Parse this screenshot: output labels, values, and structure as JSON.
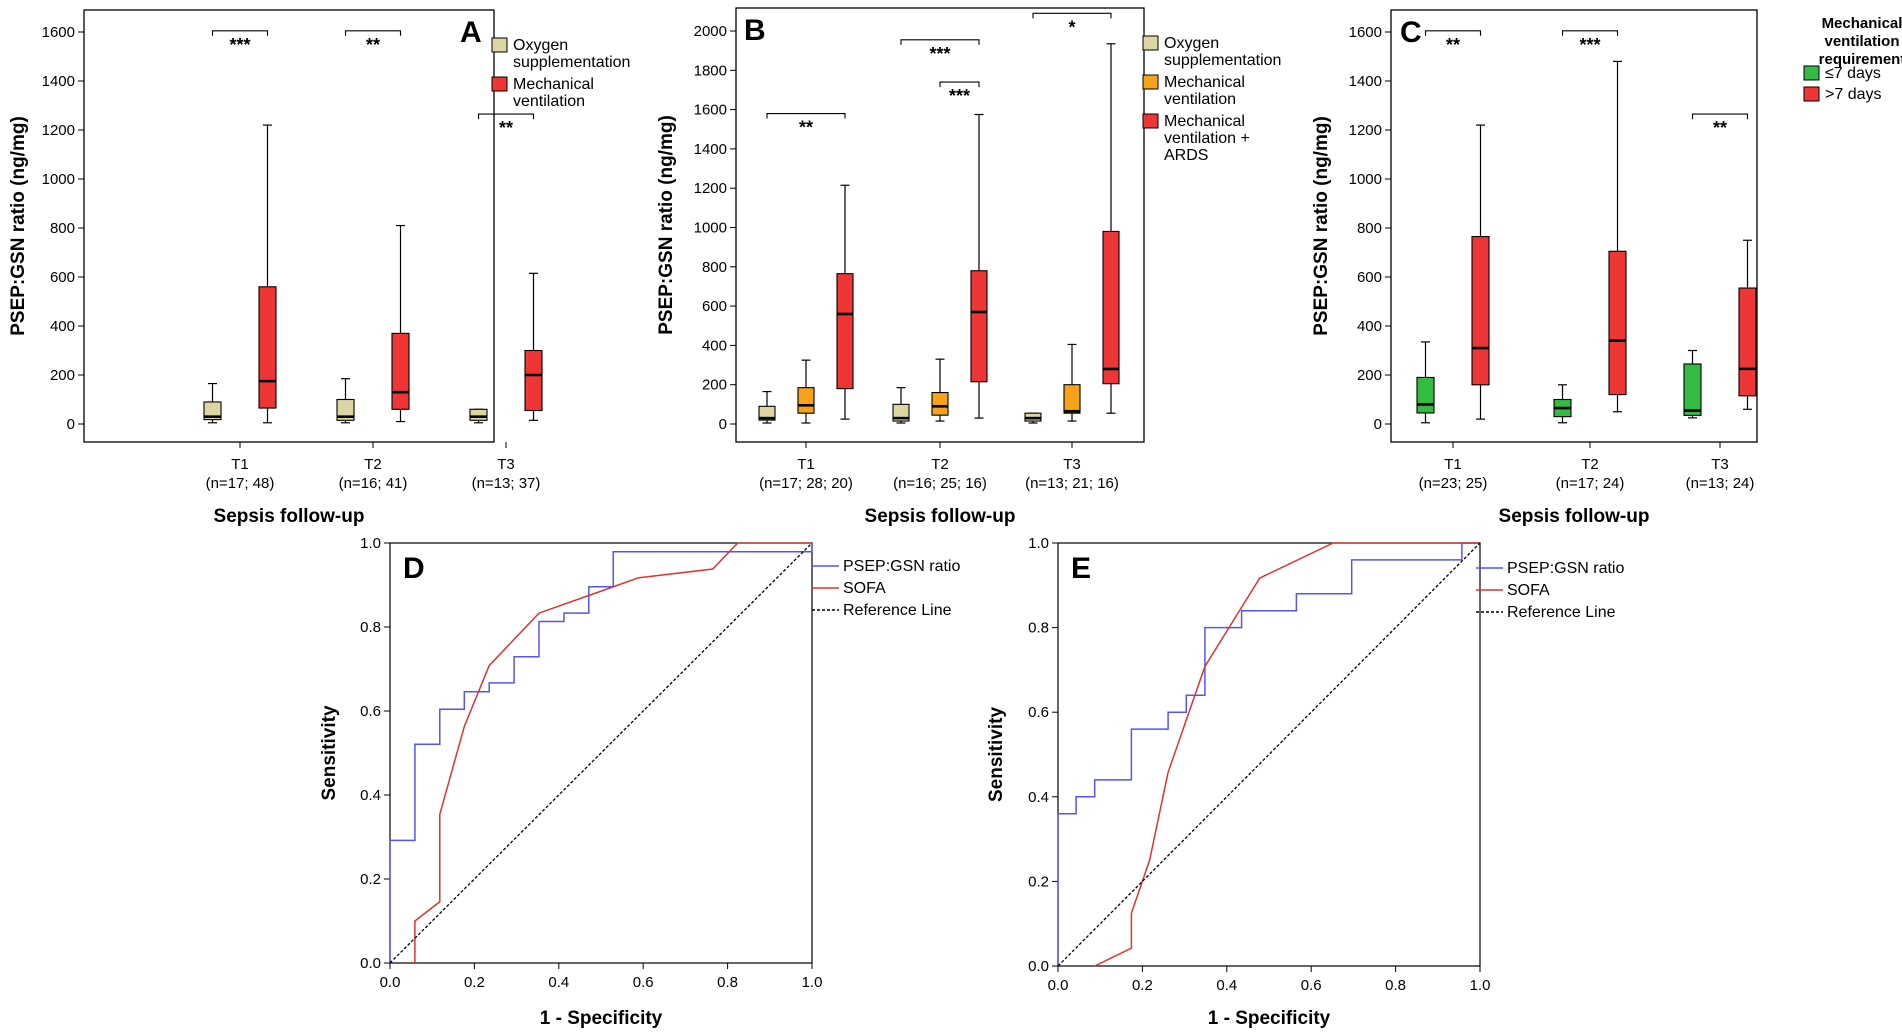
{
  "chart_data": [
    {
      "type": "boxplot",
      "panel_label": "A",
      "ylabel": "PSEP:GSN ratio (ng/mg)",
      "xlabel": "Sepsis follow-up",
      "ylim": [
        0,
        1600
      ],
      "yticks": [
        "0",
        "200",
        "400",
        "600",
        "800",
        "1000",
        "1200",
        "1400",
        "1600"
      ],
      "categories": [
        {
          "name": "T1",
          "n": "(n=17; 48)"
        },
        {
          "name": "T2",
          "n": "(n=16; 41)"
        },
        {
          "name": "T3",
          "n": "(n=13; 37)"
        }
      ],
      "legend": [
        {
          "label": "Oxygen supplementation",
          "lines": [
            "Oxygen",
            "supplementation"
          ],
          "color": "#ddd5a4"
        },
        {
          "label": "Mechanical ventilation",
          "lines": [
            "Mechanical",
            "ventilation"
          ],
          "color": "#ee3636"
        }
      ],
      "boxes": [
        {
          "category": "T1",
          "series": 0,
          "min": 5,
          "q1": 18,
          "median": 30,
          "q3": 90,
          "max": 165
        },
        {
          "category": "T1",
          "series": 1,
          "min": 5,
          "q1": 65,
          "median": 175,
          "q3": 560,
          "max": 1220
        },
        {
          "category": "T2",
          "series": 0,
          "min": 5,
          "q1": 15,
          "median": 30,
          "q3": 100,
          "max": 185
        },
        {
          "category": "T2",
          "series": 1,
          "min": 10,
          "q1": 60,
          "median": 130,
          "q3": 370,
          "max": 810
        },
        {
          "category": "T3",
          "series": 0,
          "min": 5,
          "q1": 15,
          "median": 30,
          "q3": 60,
          "max": 60
        },
        {
          "category": "T3",
          "series": 1,
          "min": 15,
          "q1": 55,
          "median": 200,
          "q3": 300,
          "max": 615
        }
      ],
      "significance": [
        {
          "category": "T1",
          "label": "***",
          "y": 1605
        },
        {
          "category": "T2",
          "label": "**",
          "y": 1605
        },
        {
          "category": "T3",
          "label": "**",
          "y": 1265
        }
      ]
    },
    {
      "type": "boxplot",
      "panel_label": "B",
      "ylabel": "PSEP:GSN ratio (ng/mg)",
      "xlabel": "Sepsis follow-up",
      "ylim": [
        0,
        2000
      ],
      "yticks": [
        "0",
        "200",
        "400",
        "600",
        "800",
        "1000",
        "1200",
        "1400",
        "1600",
        "1800",
        "2000"
      ],
      "categories": [
        {
          "name": "T1",
          "n": "(n=17; 28; 20)"
        },
        {
          "name": "T2",
          "n": "(n=16; 25; 16)"
        },
        {
          "name": "T3",
          "n": "(n=13; 21; 16)"
        }
      ],
      "legend": [
        {
          "label": "Oxygen supplementation",
          "lines": [
            "Oxygen",
            "supplementation"
          ],
          "color": "#ddd5a4"
        },
        {
          "label": "Mechanical ventilation",
          "lines": [
            "Mechanical",
            "ventilation"
          ],
          "color": "#f7a21b"
        },
        {
          "label": "Mechanical ventilation + ARDS",
          "lines": [
            "Mechanical",
            "ventilation +",
            "ARDS"
          ],
          "color": "#ee3636"
        }
      ],
      "boxes": [
        {
          "category": "T1",
          "series": 0,
          "min": 5,
          "q1": 20,
          "median": 30,
          "q3": 90,
          "max": 165
        },
        {
          "category": "T1",
          "series": 1,
          "min": 5,
          "q1": 55,
          "median": 95,
          "q3": 185,
          "max": 325
        },
        {
          "category": "T1",
          "series": 2,
          "min": 25,
          "q1": 180,
          "median": 560,
          "q3": 765,
          "max": 1215
        },
        {
          "category": "T2",
          "series": 0,
          "min": 5,
          "q1": 15,
          "median": 30,
          "q3": 100,
          "max": 185
        },
        {
          "category": "T2",
          "series": 1,
          "min": 15,
          "q1": 45,
          "median": 90,
          "q3": 160,
          "max": 330
        },
        {
          "category": "T2",
          "series": 2,
          "min": 30,
          "q1": 215,
          "median": 570,
          "q3": 780,
          "max": 1575
        },
        {
          "category": "T3",
          "series": 0,
          "min": 5,
          "q1": 15,
          "median": 30,
          "q3": 55,
          "max": 55
        },
        {
          "category": "T3",
          "series": 1,
          "min": 15,
          "q1": 55,
          "median": 65,
          "q3": 200,
          "max": 405
        },
        {
          "category": "T3",
          "series": 2,
          "min": 55,
          "q1": 205,
          "median": 280,
          "q3": 980,
          "max": 1935
        }
      ],
      "significance": [
        {
          "from": [
            0,
            0
          ],
          "to": [
            0,
            2
          ],
          "label": "**",
          "y": 1580
        },
        {
          "from": [
            1,
            0
          ],
          "to": [
            1,
            2
          ],
          "label": "***",
          "y": 1955
        },
        {
          "from": [
            1,
            1
          ],
          "to": [
            1,
            2
          ],
          "label": "***",
          "y": 1740
        },
        {
          "from": [
            2,
            0
          ],
          "to": [
            2,
            2
          ],
          "label": "*",
          "y": 2090
        }
      ]
    },
    {
      "type": "boxplot",
      "panel_label": "C",
      "ylabel": "PSEP:GSN ratio (ng/mg)",
      "xlabel": "Sepsis follow-up",
      "ylim": [
        0,
        1600
      ],
      "yticks": [
        "0",
        "200",
        "400",
        "600",
        "800",
        "1000",
        "1200",
        "1400",
        "1600"
      ],
      "categories": [
        {
          "name": "T1",
          "n": "(n=23; 25)"
        },
        {
          "name": "T2",
          "n": "(n=17; 24)"
        },
        {
          "name": "T3",
          "n": "(n=13; 24)"
        }
      ],
      "legend_title": [
        "Mechanical",
        "ventilation",
        "requirement"
      ],
      "legend": [
        {
          "label": "≤7 days",
          "lines": [
            "≤7 days"
          ],
          "color": "#33bb44"
        },
        {
          "label": ">7 days",
          "lines": [
            ">7 days"
          ],
          "color": "#ee3636"
        }
      ],
      "boxes": [
        {
          "category": "T1",
          "series": 0,
          "min": 5,
          "q1": 45,
          "median": 80,
          "q3": 190,
          "max": 335
        },
        {
          "category": "T1",
          "series": 1,
          "min": 20,
          "q1": 160,
          "median": 310,
          "q3": 765,
          "max": 1220
        },
        {
          "category": "T2",
          "series": 0,
          "min": 5,
          "q1": 30,
          "median": 65,
          "q3": 100,
          "max": 160
        },
        {
          "category": "T2",
          "series": 1,
          "min": 50,
          "q1": 120,
          "median": 340,
          "q3": 705,
          "max": 1480
        },
        {
          "category": "T3",
          "series": 0,
          "min": 25,
          "q1": 35,
          "median": 55,
          "q3": 245,
          "max": 300
        },
        {
          "category": "T3",
          "series": 1,
          "min": 60,
          "q1": 115,
          "median": 225,
          "q3": 555,
          "max": 750
        }
      ],
      "significance": [
        {
          "category": "T1",
          "label": "**",
          "y": 1605
        },
        {
          "category": "T2",
          "label": "***",
          "y": 1605
        },
        {
          "category": "T3",
          "label": "**",
          "y": 1265
        }
      ]
    },
    {
      "type": "line",
      "panel_label": "D",
      "xlabel": "1 - Specificity",
      "ylabel": "Sensitivity",
      "xlim": [
        0,
        1
      ],
      "ylim": [
        0,
        1
      ],
      "xticks": [
        "0.0",
        "0.2",
        "0.4",
        "0.6",
        "0.8",
        "1.0"
      ],
      "yticks": [
        "0.0",
        "0.2",
        "0.4",
        "0.6",
        "0.8",
        "1.0"
      ],
      "series": [
        {
          "name": "PSEP:GSN ratio",
          "color": "#5555ee",
          "style": "step",
          "x": [
            0,
            0,
            0.059,
            0.059,
            0.118,
            0.118,
            0.176,
            0.176,
            0.235,
            0.235,
            0.294,
            0.294,
            0.353,
            0.353,
            0.412,
            0.412,
            0.471,
            0.471,
            0.529,
            0.529,
            0.588,
            0.588,
            0.647,
            0.647,
            0.706,
            0.706,
            1.0,
            1.0
          ],
          "y": [
            0,
            0.292,
            0.292,
            0.521,
            0.521,
            0.604,
            0.604,
            0.646,
            0.646,
            0.667,
            0.667,
            0.729,
            0.729,
            0.813,
            0.813,
            0.833,
            0.833,
            0.896,
            0.896,
            0.979,
            0.979,
            0.979,
            0.979,
            0.979,
            0.979,
            0.979,
            0.979,
            1.0
          ]
        },
        {
          "name": "SOFA",
          "color": "#dd3333",
          "style": "line",
          "x": [
            0.059,
            0.059,
            0.118,
            0.118,
            0.176,
            0.235,
            0.353,
            0.471,
            0.588,
            0.765,
            0.824,
            1.0
          ],
          "y": [
            0,
            0.1,
            0.146,
            0.354,
            0.563,
            0.708,
            0.833,
            0.875,
            0.917,
            0.938,
            1.0,
            1.0
          ]
        },
        {
          "name": "Reference Line",
          "color": "#000000",
          "style": "dotted",
          "x": [
            0,
            1
          ],
          "y": [
            0,
            1
          ]
        }
      ]
    },
    {
      "type": "line",
      "panel_label": "E",
      "xlabel": "1 - Specificity",
      "ylabel": "Sensitivity",
      "xlim": [
        0,
        1
      ],
      "ylim": [
        0,
        1
      ],
      "xticks": [
        "0.0",
        "0.2",
        "0.4",
        "0.6",
        "0.8",
        "1.0"
      ],
      "yticks": [
        "0.0",
        "0.2",
        "0.4",
        "0.6",
        "0.8",
        "1.0"
      ],
      "series": [
        {
          "name": "PSEP:GSN ratio",
          "color": "#5555ee",
          "style": "step",
          "x": [
            0,
            0,
            0.043,
            0.043,
            0.087,
            0.087,
            0.174,
            0.174,
            0.261,
            0.261,
            0.304,
            0.304,
            0.348,
            0.348,
            0.435,
            0.435,
            0.565,
            0.565,
            0.696,
            0.696,
            0.957,
            0.957,
            1.0
          ],
          "y": [
            0,
            0.36,
            0.36,
            0.4,
            0.4,
            0.44,
            0.44,
            0.56,
            0.56,
            0.6,
            0.6,
            0.64,
            0.64,
            0.8,
            0.8,
            0.84,
            0.84,
            0.88,
            0.88,
            0.96,
            0.96,
            1.0,
            1.0
          ]
        },
        {
          "name": "SOFA",
          "color": "#dd3333",
          "style": "line",
          "x": [
            0.087,
            0.174,
            0.174,
            0.217,
            0.261,
            0.348,
            0.478,
            0.652,
            0.696,
            1.0
          ],
          "y": [
            0,
            0.042,
            0.125,
            0.25,
            0.458,
            0.708,
            0.917,
            1.0,
            1.0,
            1.0
          ]
        },
        {
          "name": "Reference Line",
          "color": "#000000",
          "style": "dotted",
          "x": [
            0,
            1
          ],
          "y": [
            0,
            1
          ]
        }
      ]
    }
  ]
}
